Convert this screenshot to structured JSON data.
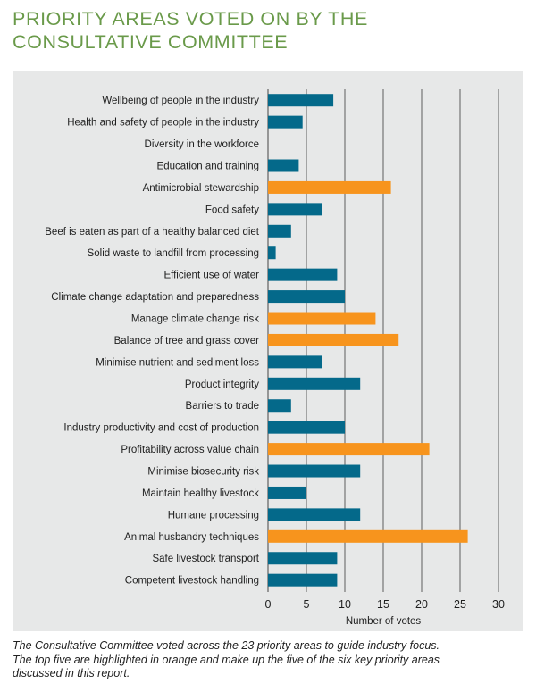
{
  "title_lines": [
    "PRIORITY AREAS VOTED ON BY THE",
    "CONSULTATIVE COMMITTEE"
  ],
  "caption_lines": [
    "The Consultative Committee voted across the 23 priority areas to guide industry focus.",
    "The top five are highlighted in orange and make up the five of the six key priority areas",
    "discussed in this report."
  ],
  "colors": {
    "highlight": "#f7941d",
    "standard": "#04698a",
    "panel": "#e7e8e8",
    "title": "#6a9a4a"
  },
  "chart_data": {
    "type": "bar",
    "orientation": "horizontal",
    "xlabel": "Number of votes",
    "xlim": [
      0,
      30
    ],
    "xticks": [
      0,
      5,
      10,
      15,
      20,
      25,
      30
    ],
    "grid": true,
    "categories": [
      "Wellbeing of people in the industry",
      "Health and safety of people in the industry",
      "Diversity in the workforce",
      "Education and training",
      "Antimicrobial stewardship",
      "Food safety",
      "Beef is eaten as part of a healthy balanced diet",
      "Solid waste to landfill from processing",
      "Efficient use of water",
      "Climate change adaptation and preparedness",
      "Manage climate change risk",
      "Balance of tree and grass cover",
      "Minimise nutrient and sediment loss",
      "Product integrity",
      "Barriers to trade",
      "Industry productivity and cost of production",
      "Profitability across value chain",
      "Minimise biosecurity risk",
      "Maintain healthy livestock",
      "Humane processing",
      "Animal husbandry techniques",
      "Safe livestock transport",
      "Competent livestock handling"
    ],
    "values": [
      8.5,
      4.5,
      0,
      4,
      16,
      7,
      3,
      1,
      9,
      10,
      14,
      17,
      7,
      12,
      3,
      10,
      21,
      12,
      5,
      12,
      26,
      9,
      9
    ],
    "highlighted": [
      false,
      false,
      false,
      false,
      true,
      false,
      false,
      false,
      false,
      false,
      true,
      true,
      false,
      false,
      false,
      false,
      true,
      false,
      false,
      false,
      true,
      false,
      false
    ]
  }
}
